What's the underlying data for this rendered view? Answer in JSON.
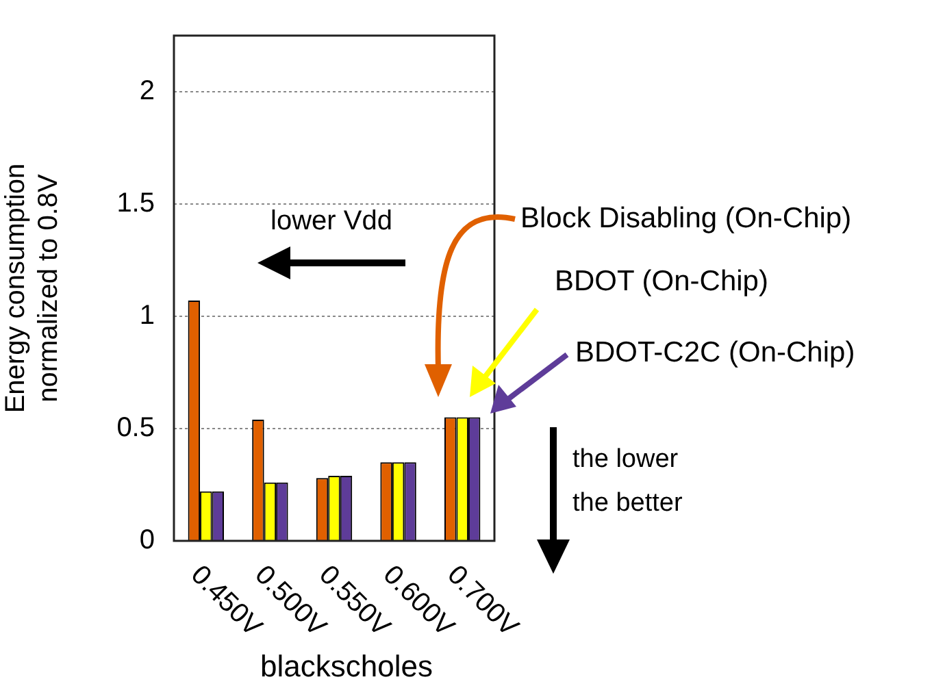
{
  "chart_data": {
    "type": "bar",
    "xlabel": "blackscholes",
    "ylabel": "Energy consumption normalized to 0.8V",
    "categories": [
      "0.450V",
      "0.500V",
      "0.550V",
      "0.600V",
      "0.700V"
    ],
    "series": [
      {
        "name": "Block Disabling (On-Chip)",
        "color": "#e06000",
        "values": [
          1.07,
          0.54,
          0.28,
          0.35,
          0.55
        ]
      },
      {
        "name": "BDOT (On-Chip)",
        "color": "#ffff00",
        "values": [
          0.22,
          0.26,
          0.29,
          0.35,
          0.55
        ]
      },
      {
        "name": "BDOT-C2C (On-Chip)",
        "color": "#5e3c99",
        "values": [
          0.22,
          0.26,
          0.29,
          0.35,
          0.55
        ]
      }
    ],
    "ylim": [
      0,
      2.25
    ],
    "yticks": [
      0,
      0.5,
      1,
      1.5,
      2
    ],
    "grid": "y",
    "annotations": [
      "lower Vdd",
      "the lower the better"
    ]
  }
}
